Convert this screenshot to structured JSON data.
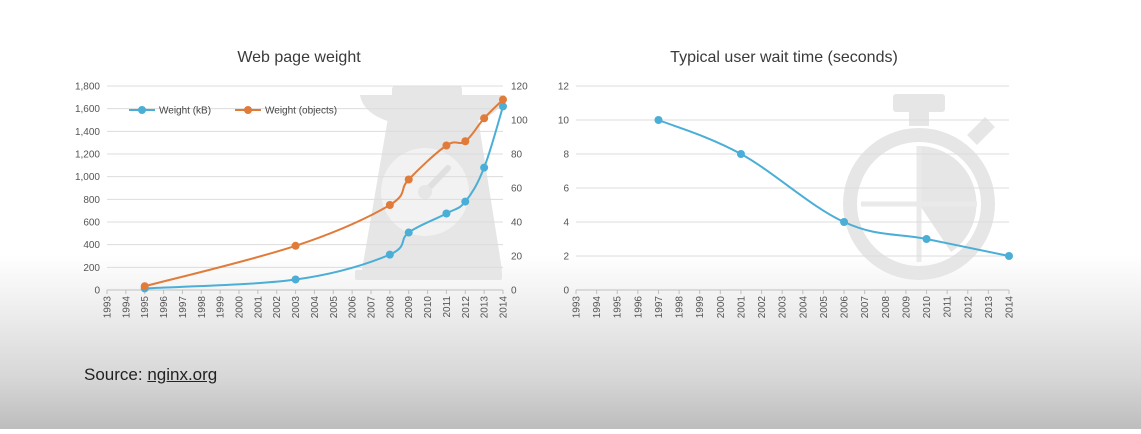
{
  "source": {
    "prefix": "Source: ",
    "link": "nginx.org"
  },
  "colors": {
    "kb": "#4aaed6",
    "objects": "#e07b39",
    "wait": "#4aaed6",
    "grid": "#dcdcdc",
    "watermark": "#e6e6e6"
  },
  "chart_data": [
    {
      "type": "line",
      "title": "Web page weight",
      "x_ticks": [
        "1993",
        "1994",
        "1995",
        "1996",
        "1997",
        "1998",
        "1999",
        "2000",
        "2001",
        "2002",
        "2003",
        "2004",
        "2005",
        "2006",
        "2007",
        "2008",
        "2009",
        "2010",
        "2011",
        "2012",
        "2013",
        "2014"
      ],
      "ylim": [
        0,
        1800
      ],
      "y_ticks": [
        "0",
        "200",
        "400",
        "600",
        "800",
        "1,000",
        "1,200",
        "1,400",
        "1,600",
        "1,800"
      ],
      "ylim_right": [
        0,
        120
      ],
      "y_ticks_right": [
        "0",
        "20",
        "40",
        "60",
        "80",
        "100",
        "120"
      ],
      "grid": true,
      "legend_position": "top-left",
      "background_icon": "kitchen-scale-icon",
      "series": [
        {
          "name": "Weight (kB)",
          "axis": "left",
          "color": "#4aaed6",
          "x": [
            1995,
            2003,
            2008,
            2009,
            2011,
            2012,
            2013,
            2014
          ],
          "values": [
            14,
            93,
            312,
            507,
            675,
            780,
            1080,
            1620
          ]
        },
        {
          "name": "Weight (objects)",
          "axis": "right",
          "color": "#e07b39",
          "x": [
            1995,
            2003,
            2008,
            2009,
            2011,
            2012,
            2013,
            2014
          ],
          "values": [
            2.2,
            26,
            50,
            65,
            85,
            87.5,
            101,
            112
          ]
        }
      ]
    },
    {
      "type": "line",
      "title": "Typical user wait time (seconds)",
      "x_ticks": [
        "1993",
        "1994",
        "1995",
        "1996",
        "1997",
        "1998",
        "1999",
        "2000",
        "2001",
        "2002",
        "2003",
        "2004",
        "2005",
        "2006",
        "2007",
        "2008",
        "2009",
        "2010",
        "2011",
        "2012",
        "2013",
        "2014"
      ],
      "ylim": [
        0,
        12
      ],
      "y_ticks": [
        "0",
        "2",
        "4",
        "6",
        "8",
        "10",
        "12"
      ],
      "grid": true,
      "background_icon": "stopwatch-icon",
      "series": [
        {
          "color": "#4aaed6",
          "x": [
            1997,
            2001,
            2006,
            2010,
            2014
          ],
          "values": [
            10,
            8,
            4,
            3,
            2
          ]
        }
      ]
    }
  ]
}
